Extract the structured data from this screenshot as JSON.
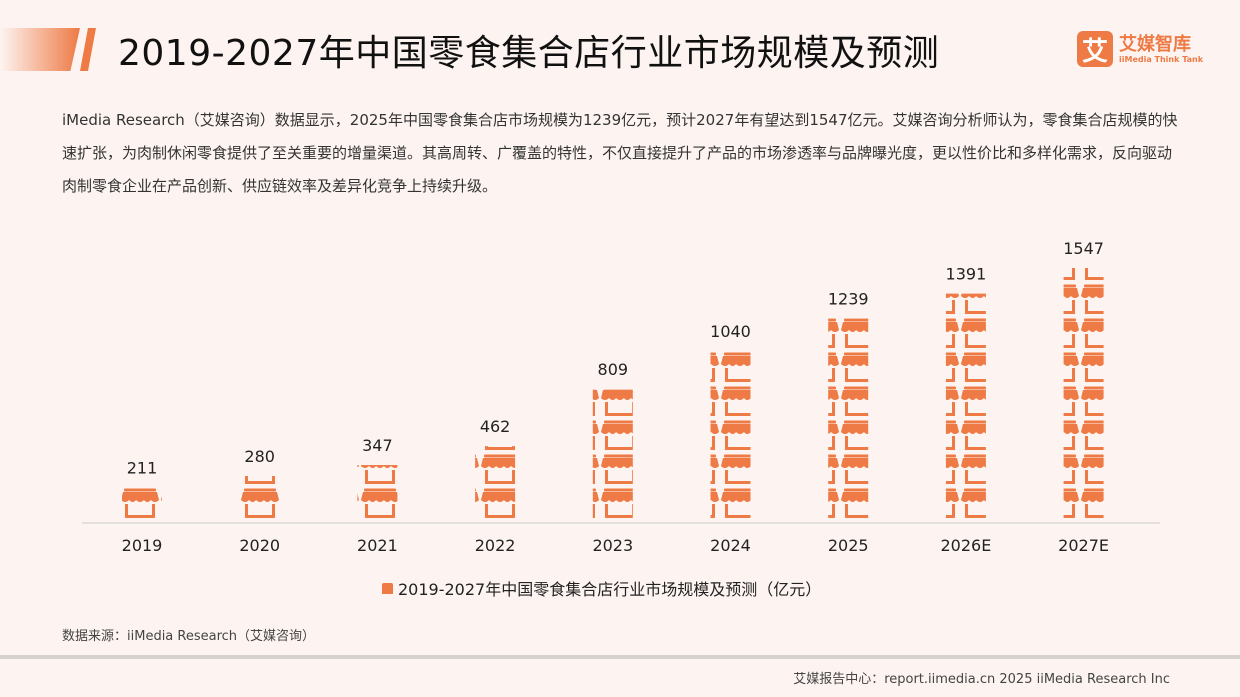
{
  "header": {
    "title": "2019-2027年中国零食集合店行业市场规模及预测",
    "logo_cn": "艾媒智库",
    "logo_en": "iiMedia Think Tank",
    "logo_mark": "艾"
  },
  "description": "iMedia Research（艾媒咨询）数据显示，2025年中国零食集合店市场规模为1239亿元，预计2027年有望达到1547亿元。艾媒咨询分析师认为，零食集合店规模的快速扩张，为肉制休闲零食提供了至关重要的增量渠道。其高周转、广覆盖的特性，不仅直接提升了产品的市场渗透率与品牌曝光度，更以性价比和多样化需求，反向驱动肉制零食企业在产品创新、供应链效率及差异化竞争上持续升级。",
  "chart_data": {
    "type": "bar",
    "style": "pictograph-store-icons",
    "categories": [
      "2019",
      "2020",
      "2021",
      "2022",
      "2023",
      "2024",
      "2025",
      "2026E",
      "2027E"
    ],
    "series": [
      {
        "name": "2019-2027年中国零食集合店行业市场规模及预测（亿元）",
        "values": [
          211,
          280,
          347,
          462,
          809,
          1040,
          1239,
          1391,
          1547
        ],
        "color": "#ee7a45"
      }
    ],
    "ylim": [
      0,
      1547
    ],
    "grid": false,
    "legend": "bottom"
  },
  "source": "数据来源：iiMedia Research（艾媒咨询）",
  "footer": "艾媒报告中心：report.iimedia.cn   2025 iiMedia Research Inc"
}
